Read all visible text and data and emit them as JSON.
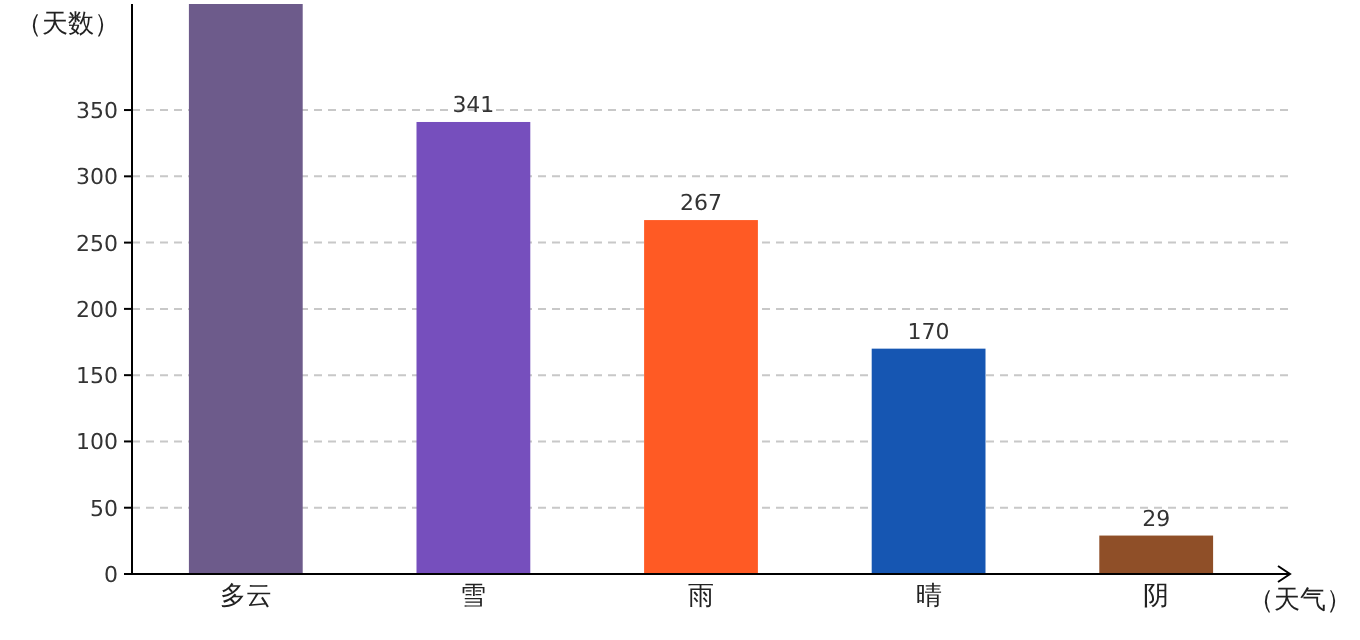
{
  "chart_data": {
    "type": "bar",
    "ylabel": "（天数）",
    "xlabel": "（天气）",
    "categories": [
      "多云",
      "雪",
      "雨",
      "晴",
      "阴"
    ],
    "values": [
      430,
      341,
      267,
      170,
      29
    ],
    "value_labels": [
      null,
      "341",
      "267",
      "170",
      "29"
    ],
    "colors": [
      "#6d5b8b",
      "#764fbd",
      "#ff5a24",
      "#1656b2",
      "#8f4f28"
    ],
    "ylim": [
      0,
      430
    ],
    "yticks": [
      0,
      50,
      100,
      150,
      200,
      250,
      300,
      350
    ],
    "grid": "y"
  }
}
